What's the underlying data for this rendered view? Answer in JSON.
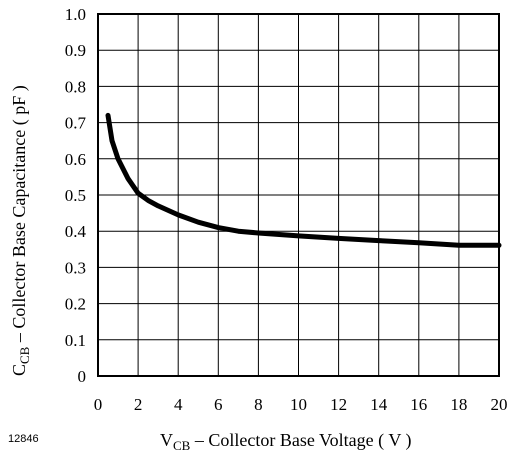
{
  "figure_id": "12846",
  "chart_data": {
    "type": "line",
    "title": "",
    "xlabel": {
      "main": "V",
      "sub": "CB",
      "rest": " – Collector Base Voltage ( V )"
    },
    "ylabel": {
      "main": "C",
      "sub": "CB",
      "rest": "  – Collector Base Capacitance  ( pF )"
    },
    "xlim": [
      0,
      20
    ],
    "ylim": [
      0,
      1.0
    ],
    "x_ticks": [
      "0",
      "2",
      "4",
      "6",
      "8",
      "10",
      "12",
      "14",
      "16",
      "18",
      "20"
    ],
    "y_ticks": [
      "0",
      "0.1",
      "0.2",
      "0.3",
      "0.4",
      "0.5",
      "0.6",
      "0.7",
      "0.8",
      "0.9",
      "1.0"
    ],
    "grid": true,
    "series": [
      {
        "color": "#000000",
        "x": [
          0.5,
          0.7,
          1.0,
          1.5,
          2.0,
          2.5,
          3.0,
          4.0,
          5.0,
          6.0,
          7.0,
          8.0,
          10.0,
          12.0,
          14.0,
          16.0,
          18.0,
          20.0
        ],
        "y": [
          0.72,
          0.65,
          0.6,
          0.545,
          0.505,
          0.485,
          0.47,
          0.445,
          0.425,
          0.41,
          0.4,
          0.395,
          0.387,
          0.38,
          0.374,
          0.368,
          0.361,
          0.361
        ]
      }
    ]
  }
}
